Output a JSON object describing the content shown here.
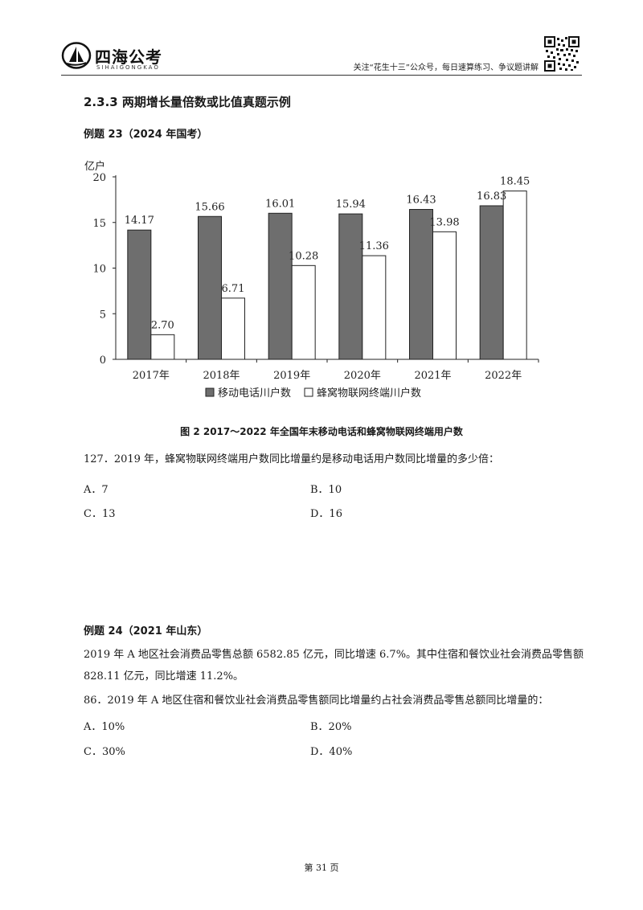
{
  "header": {
    "logo_text": "四海公考",
    "logo_subtext": "SIHAIGONGKAO",
    "slogan": "关注“花生十三”公众号，每日速算练习、争议题讲解"
  },
  "section_title": "2.3.3  两期增长量倍数或比值真题示例",
  "example23": {
    "title": "例题 23（2024 年国考）",
    "figure_caption": "图 2   2017～2022 年全国年末移动电话和蜂窝物联网终端用户数",
    "question": "127．2019 年，蜂窝物联网终端用户数同比增量约是移动电话用户数同比增量的多少倍：",
    "options": [
      "A．7",
      "B．10",
      "C．13",
      "D．16"
    ]
  },
  "example24": {
    "title": "例题 24（2021 年山东）",
    "paragraph": "2019 年 A 地区社会消费品零售总额 6582.85 亿元，同比增速 6.7%。其中住宿和餐饮业社会消费品零售额 828.11 亿元，同比增速 11.2%。",
    "question": "86．2019 年 A 地区住宿和餐饮业社会消费品零售额同比增量约占社会消费品零售总额同比增量的：",
    "options": [
      "A．10%",
      "B．20%",
      "C．30%",
      "D．40%"
    ]
  },
  "footer": {
    "page_label": "第 31 页"
  },
  "chart_data": {
    "type": "bar",
    "ylabel": "亿户",
    "ylim": [
      0,
      20
    ],
    "yticks": [
      0,
      5,
      10,
      15,
      20
    ],
    "categories": [
      "2017年",
      "2018年",
      "2019年",
      "2020年",
      "2021年",
      "2022年"
    ],
    "series": [
      {
        "name": "移动电话川户数",
        "values": [
          14.17,
          15.66,
          16.01,
          15.94,
          16.43,
          16.83
        ],
        "labels": [
          "14.17",
          "15.66",
          "16.01",
          "15.94",
          "16.43",
          "16.83"
        ],
        "color": "#6e6e6e"
      },
      {
        "name": "蜂窝物联网终端川户数",
        "values": [
          2.7,
          6.71,
          10.28,
          11.36,
          13.98,
          18.45
        ],
        "labels": [
          "2.70",
          "6.71",
          "10.28",
          "11.36",
          "13.98",
          "18.45"
        ],
        "color": "#ffffff"
      }
    ],
    "legend_position": "bottom",
    "grid": false
  }
}
